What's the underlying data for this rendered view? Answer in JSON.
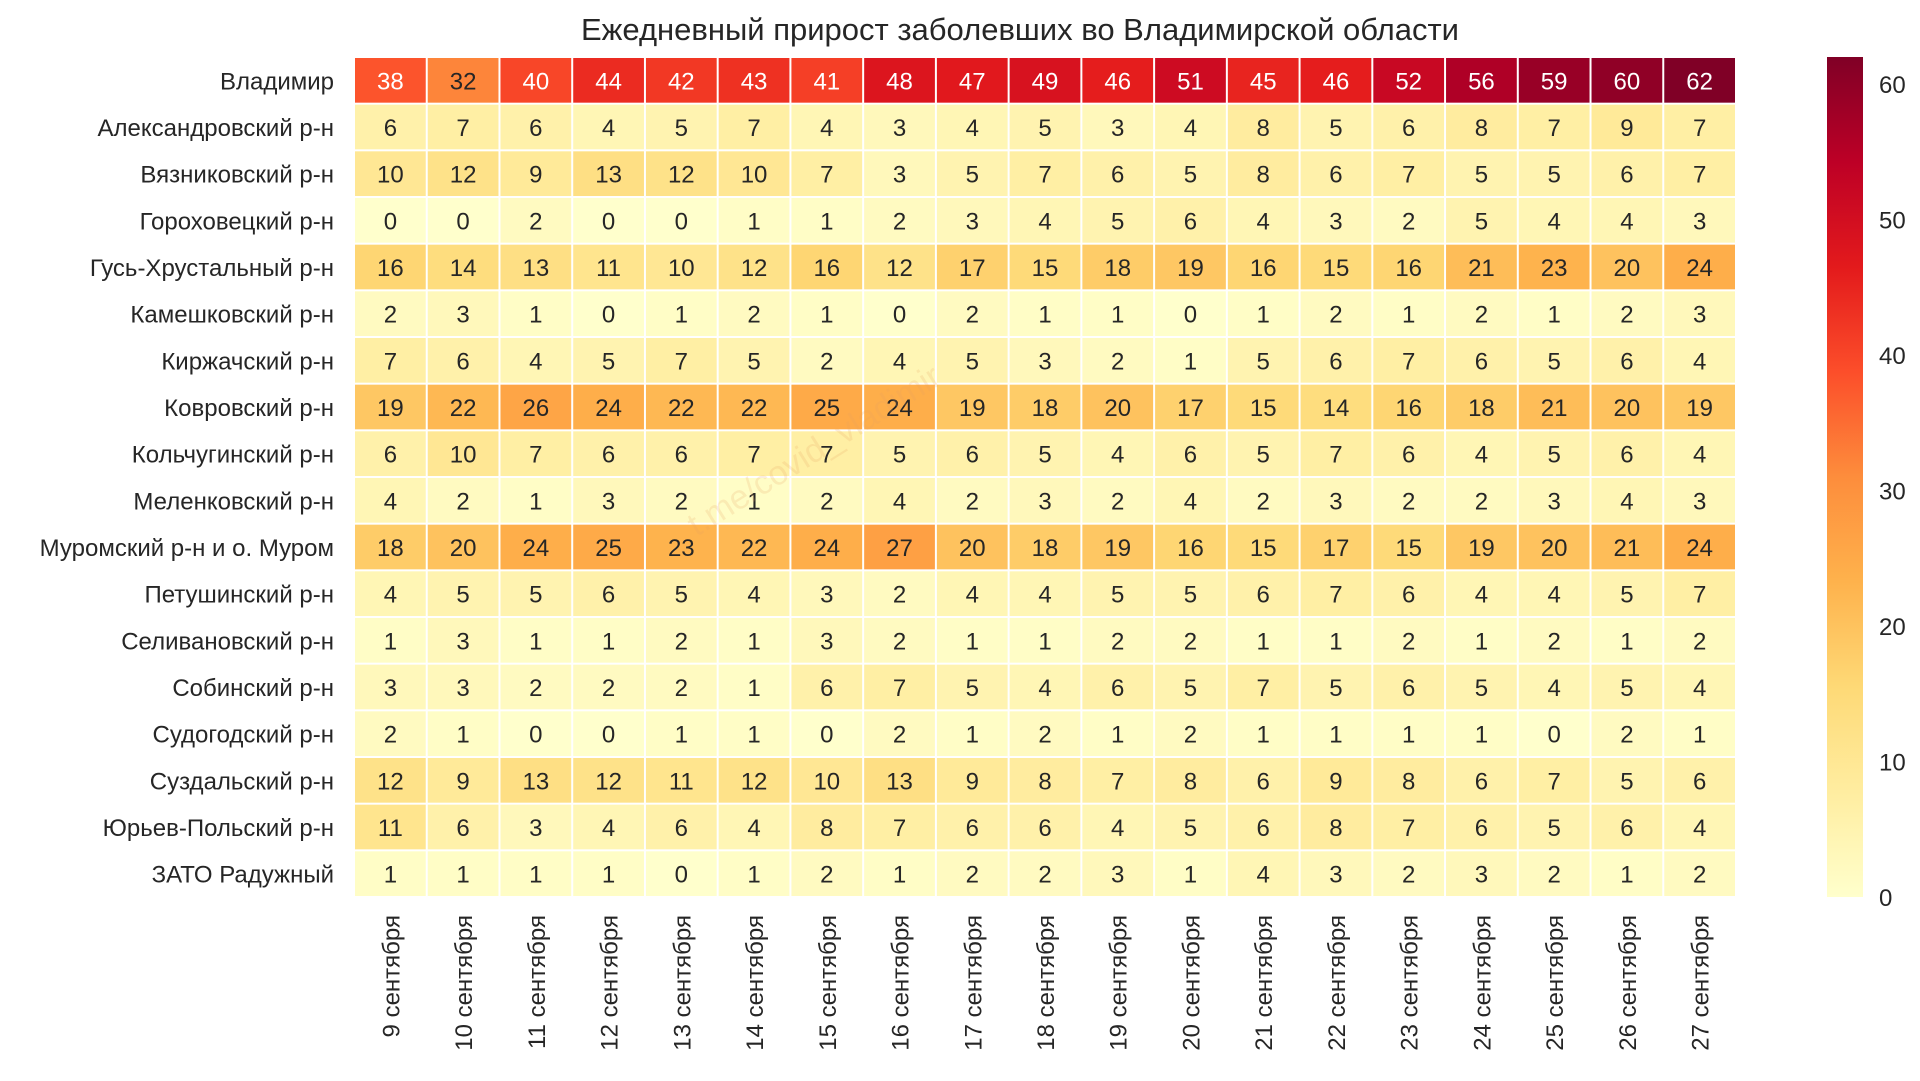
{
  "chart_data": {
    "type": "heatmap",
    "title": "Ежедневный прирост заболевших во Владимирской области",
    "rows": [
      "Владимир",
      "Александровский р-н",
      "Вязниковский р-н",
      "Гороховецкий р-н",
      "Гусь-Хрустальный р-н",
      "Камешковский р-н",
      "Киржачский р-н",
      "Ковровский р-н",
      "Кольчугинский р-н",
      "Меленковский р-н",
      "Муромский р-н и о. Муром",
      "Петушинский р-н",
      "Селивановский р-н",
      "Собинский р-н",
      "Судогодский р-н",
      "Суздальский р-н",
      "Юрьев-Польский р-н",
      "ЗАТО Радужный"
    ],
    "columns": [
      "9 сентября",
      "10 сентября",
      "11 сентября",
      "12 сентября",
      "13 сентября",
      "14 сентября",
      "15 сентября",
      "16 сентября",
      "17 сентября",
      "18 сентября",
      "19 сентября",
      "20 сентября",
      "21 сентября",
      "22 сентября",
      "23 сентября",
      "24 сентября",
      "25 сентября",
      "26 сентября",
      "27 сентября"
    ],
    "values": [
      [
        38,
        32,
        40,
        44,
        42,
        43,
        41,
        48,
        47,
        49,
        46,
        51,
        45,
        46,
        52,
        56,
        59,
        60,
        62
      ],
      [
        6,
        7,
        6,
        4,
        5,
        7,
        4,
        3,
        4,
        5,
        3,
        4,
        8,
        5,
        6,
        8,
        7,
        9,
        7
      ],
      [
        10,
        12,
        9,
        13,
        12,
        10,
        7,
        3,
        5,
        7,
        6,
        5,
        8,
        6,
        7,
        5,
        5,
        6,
        7
      ],
      [
        0,
        0,
        2,
        0,
        0,
        1,
        1,
        2,
        3,
        4,
        5,
        6,
        4,
        3,
        2,
        5,
        4,
        4,
        3
      ],
      [
        16,
        14,
        13,
        11,
        10,
        12,
        16,
        12,
        17,
        15,
        18,
        19,
        16,
        15,
        16,
        21,
        23,
        20,
        24
      ],
      [
        2,
        3,
        1,
        0,
        1,
        2,
        1,
        0,
        2,
        1,
        1,
        0,
        1,
        2,
        1,
        2,
        1,
        2,
        3
      ],
      [
        7,
        6,
        4,
        5,
        7,
        5,
        2,
        4,
        5,
        3,
        2,
        1,
        5,
        6,
        7,
        6,
        5,
        6,
        4
      ],
      [
        19,
        22,
        26,
        24,
        22,
        22,
        25,
        24,
        19,
        18,
        20,
        17,
        15,
        14,
        16,
        18,
        21,
        20,
        19
      ],
      [
        6,
        10,
        7,
        6,
        6,
        7,
        7,
        5,
        6,
        5,
        4,
        6,
        5,
        7,
        6,
        4,
        5,
        6,
        4
      ],
      [
        4,
        2,
        1,
        3,
        2,
        1,
        2,
        4,
        2,
        3,
        2,
        4,
        2,
        3,
        2,
        2,
        3,
        4,
        3
      ],
      [
        18,
        20,
        24,
        25,
        23,
        22,
        24,
        27,
        20,
        18,
        19,
        16,
        15,
        17,
        15,
        19,
        20,
        21,
        24
      ],
      [
        4,
        5,
        5,
        6,
        5,
        4,
        3,
        2,
        4,
        4,
        5,
        5,
        6,
        7,
        6,
        4,
        4,
        5,
        7
      ],
      [
        1,
        3,
        1,
        1,
        2,
        1,
        3,
        2,
        1,
        1,
        2,
        2,
        1,
        1,
        2,
        1,
        2,
        1,
        2
      ],
      [
        3,
        3,
        2,
        2,
        2,
        1,
        6,
        7,
        5,
        4,
        6,
        5,
        7,
        5,
        6,
        5,
        4,
        5,
        4
      ],
      [
        2,
        1,
        0,
        0,
        1,
        1,
        0,
        2,
        1,
        2,
        1,
        2,
        1,
        1,
        1,
        1,
        0,
        2,
        1
      ],
      [
        12,
        9,
        13,
        12,
        11,
        12,
        10,
        13,
        9,
        8,
        7,
        8,
        6,
        9,
        8,
        6,
        7,
        5,
        6
      ],
      [
        11,
        6,
        3,
        4,
        6,
        4,
        8,
        7,
        6,
        6,
        4,
        5,
        6,
        8,
        7,
        6,
        5,
        6,
        4
      ],
      [
        1,
        1,
        1,
        1,
        0,
        1,
        2,
        1,
        2,
        2,
        3,
        1,
        4,
        3,
        2,
        3,
        2,
        1,
        2
      ]
    ],
    "colorbar": {
      "range": [
        0,
        62
      ],
      "ticks": [
        0,
        10,
        20,
        30,
        40,
        50,
        60
      ],
      "colormap": "YlOrRd",
      "colors": [
        "#ffffcc",
        "#ffeda0",
        "#fed976",
        "#feb24c",
        "#fd8d3c",
        "#fc4e2a",
        "#e31a1c",
        "#bd0026",
        "#800026"
      ]
    },
    "grid": false,
    "legend": "colorbar-right"
  },
  "watermark": "t.me/covid_vladimir"
}
